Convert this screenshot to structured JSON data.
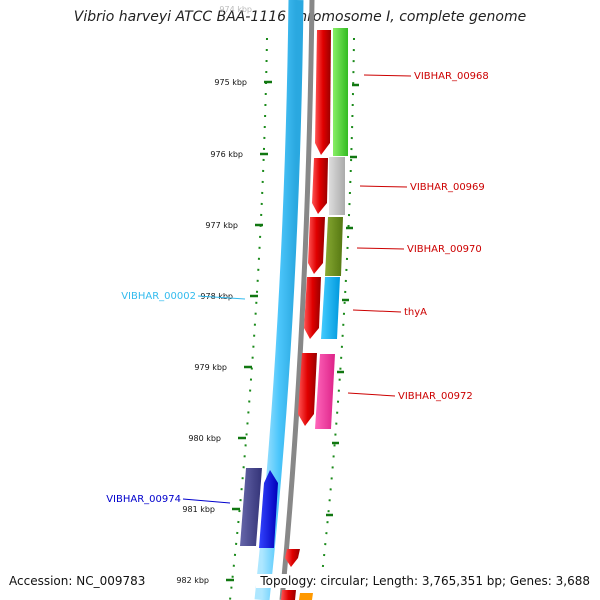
{
  "title": "Vibrio harveyi ATCC BAA-1116 chromosome I, complete genome",
  "footer": {
    "accession": "Accession: NC_009783",
    "summary": "Topology: circular; Length: 3,765,351 bp; Genes: 3,688"
  },
  "ruler": {
    "unit": "kbp",
    "first_tick_faded": "974 kbp",
    "ticks": [
      "975 kbp",
      "976 kbp",
      "977 kbp",
      "978 kbp",
      "979 kbp",
      "980 kbp",
      "981 kbp",
      "982 kbp"
    ]
  },
  "gene_labels": [
    {
      "name": "VIBHAR_00968",
      "color": "#cc0000"
    },
    {
      "name": "VIBHAR_00969",
      "color": "#cc0000"
    },
    {
      "name": "VIBHAR_00970",
      "color": "#cc0000"
    },
    {
      "name": "thyA",
      "color": "#cc0000"
    },
    {
      "name": "VIBHAR_00972",
      "color": "#cc0000"
    },
    {
      "name": "VIBHAR_00002",
      "color": "#33bbee"
    },
    {
      "name": "VIBHAR_00974",
      "color": "#0000cc"
    }
  ],
  "colors": {
    "backbone_light": "#55ccff",
    "backbone_gray": "#888888",
    "forward_gene": "#dd0000",
    "tick_green": "#007700",
    "cds_green": "#44cc33",
    "cds_gray": "#bbbbbb",
    "cds_olive": "#668822",
    "cds_cyan": "#00aaee",
    "cds_pink": "#ee3399",
    "cds_navy": "#444488",
    "cds_blue": "#0000dd",
    "cds_orange": "#ff9900"
  }
}
